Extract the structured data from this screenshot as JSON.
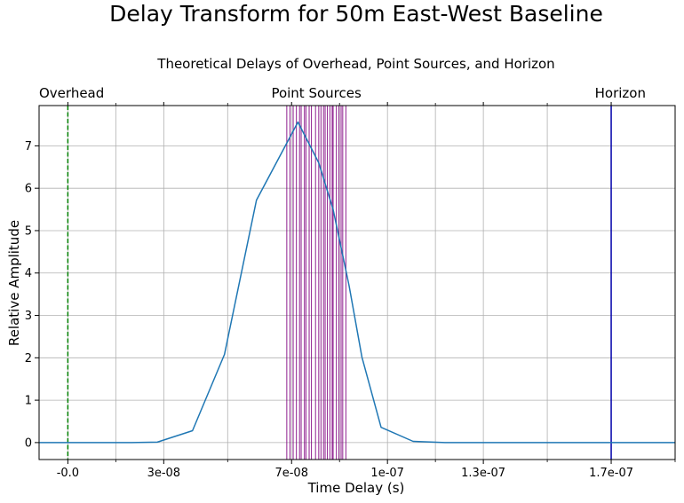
{
  "chart_data": {
    "type": "line",
    "title": "Delay Transform for 50m East-West Baseline",
    "subtitle": "Theoretical Delays of Overhead, Point Sources, and Horizon",
    "xlabel": "Time Delay (s)",
    "ylabel": "Relative Amplitude",
    "xlim": [
      -9e-09,
      1.9e-07
    ],
    "ylim": [
      -0.4,
      7.95
    ],
    "xticks": [
      {
        "value": 0,
        "label": "-0.0"
      },
      {
        "value": 3e-08,
        "label": "3e-08"
      },
      {
        "value": 7e-08,
        "label": "7e-08"
      },
      {
        "value": 1e-07,
        "label": "1e-07"
      },
      {
        "value": 1.3e-07,
        "label": "1.3e-07"
      },
      {
        "value": 1.7e-07,
        "label": "1.7e-07"
      }
    ],
    "yticks": [
      0,
      1,
      2,
      3,
      4,
      5,
      6,
      7
    ],
    "grid": true,
    "series": [
      {
        "color": "#1f77b4",
        "x": [
          -9e-09,
          0,
          1e-08,
          2e-08,
          2.8e-08,
          3.9e-08,
          4.9e-08,
          5.9e-08,
          7.2e-08,
          7.85e-08,
          8.3e-08,
          8.8e-08,
          9.2e-08,
          9.8e-08,
          1.08e-07,
          1.18e-07,
          1.3e-07,
          1.5e-07,
          1.7e-07,
          1.9e-07
        ],
        "y": [
          0,
          0,
          0,
          0,
          0.01,
          0.28,
          2.08,
          5.72,
          7.56,
          6.6,
          5.5,
          3.7,
          2.02,
          0.36,
          0.03,
          0,
          0,
          0,
          0,
          0
        ]
      }
    ],
    "vertical_markers": [
      {
        "label": "Overhead",
        "x": 0,
        "color": "#008000",
        "style": "dashed"
      },
      {
        "label": "Horizon",
        "x": 1.7e-07,
        "color": "#0000aa",
        "style": "solid"
      }
    ],
    "point_sources": {
      "label": "Point Sources",
      "color": "#800080",
      "x": [
        6.85e-08,
        6.95e-08,
        7.05e-08,
        7.15e-08,
        7.25e-08,
        7.3e-08,
        7.4e-08,
        7.45e-08,
        7.55e-08,
        7.62e-08,
        7.75e-08,
        7.85e-08,
        7.92e-08,
        8e-08,
        8.05e-08,
        8.12e-08,
        8.2e-08,
        8.27e-08,
        8.3e-08,
        8.4e-08,
        8.48e-08,
        8.55e-08,
        8.6e-08,
        8.7e-08
      ]
    }
  }
}
